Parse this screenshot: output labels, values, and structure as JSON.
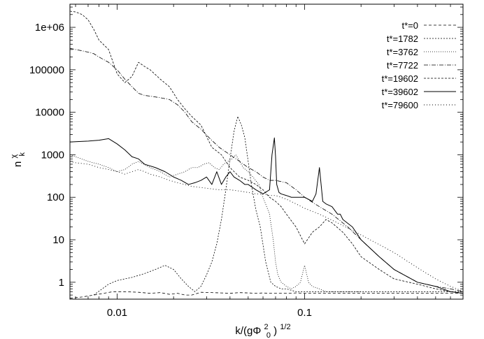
{
  "chart_data": {
    "type": "line",
    "title": "",
    "xlabel": "k/(gΦ₀²)^{1/2}",
    "xlabel_parts": {
      "base": "k/(gΦ",
      "sub": "0",
      "sup": "2",
      "close": ")",
      "exp": "1/2"
    },
    "ylabel": "n_k^χ",
    "ylabel_parts": {
      "base": "n",
      "sub": "k",
      "sup": "χ"
    },
    "x_scale": "log",
    "y_scale": "log",
    "xlim": [
      0.0056,
      0.7
    ],
    "ylim": [
      0.4,
      3500000
    ],
    "x_ticks": [
      {
        "value": 0.01,
        "label": "0.01"
      },
      {
        "value": 0.1,
        "label": "0.1"
      }
    ],
    "y_ticks": [
      {
        "value": 1,
        "label": "1"
      },
      {
        "value": 10,
        "label": "10"
      },
      {
        "value": 100,
        "label": "100"
      },
      {
        "value": 1000,
        "label": "1000"
      },
      {
        "value": 10000,
        "label": "10000"
      },
      {
        "value": 100000,
        "label": "100000"
      },
      {
        "value": 1000000,
        "label": "1e+06"
      }
    ],
    "legend_position": "top-right",
    "series": [
      {
        "name": "t*=0",
        "dash": "4,3",
        "width": 0.8,
        "x": [
          0.0056,
          0.0065,
          0.0075,
          0.0085,
          0.0095,
          0.011,
          0.013,
          0.015,
          0.017,
          0.019,
          0.021,
          0.023,
          0.025,
          0.028,
          0.032,
          0.036,
          0.04,
          0.045,
          0.05,
          0.055,
          0.06,
          0.065,
          0.07,
          0.08,
          0.09,
          0.1,
          0.12,
          0.15,
          0.2,
          0.3,
          0.4,
          0.5,
          0.6,
          0.7
        ],
        "y": [
          0.42,
          0.45,
          0.5,
          0.55,
          0.6,
          0.6,
          0.58,
          0.55,
          0.57,
          0.52,
          0.55,
          0.5,
          0.5,
          0.58,
          0.57,
          0.56,
          0.55,
          0.57,
          0.56,
          0.55,
          0.56,
          0.55,
          0.55,
          0.55,
          0.56,
          0.55,
          0.55,
          0.55,
          0.55,
          0.55,
          0.55,
          0.55,
          0.55,
          0.55
        ]
      },
      {
        "name": "t*=1782",
        "dash": "2,2",
        "width": 0.8,
        "x": [
          0.0075,
          0.009,
          0.01,
          0.012,
          0.014,
          0.016,
          0.018,
          0.02,
          0.022,
          0.024,
          0.026,
          0.028,
          0.03,
          0.032,
          0.034,
          0.036,
          0.038,
          0.04,
          0.042,
          0.044,
          0.046,
          0.048,
          0.05,
          0.052,
          0.055,
          0.058,
          0.062,
          0.066,
          0.07,
          0.075,
          0.08,
          0.09,
          0.1,
          0.12,
          0.15,
          0.2,
          0.3,
          0.5,
          0.7
        ],
        "y": [
          0.5,
          0.9,
          1.1,
          1.3,
          1.6,
          2.0,
          2.5,
          2.0,
          1.2,
          0.8,
          0.6,
          0.8,
          1.5,
          3,
          8,
          30,
          150,
          800,
          3500,
          8000,
          5000,
          2500,
          700,
          200,
          50,
          20,
          3,
          1,
          0.8,
          0.7,
          0.7,
          0.6,
          0.6,
          0.6,
          0.6,
          0.6,
          0.6,
          0.6,
          0.6
        ]
      },
      {
        "name": "t*=3762",
        "dash": "1,2",
        "width": 0.8,
        "x": [
          0.0056,
          0.007,
          0.008,
          0.009,
          0.01,
          0.011,
          0.012,
          0.013,
          0.015,
          0.017,
          0.019,
          0.021,
          0.023,
          0.025,
          0.027,
          0.029,
          0.031,
          0.033,
          0.035,
          0.037,
          0.039,
          0.041,
          0.043,
          0.045,
          0.047,
          0.05,
          0.053,
          0.057,
          0.06,
          0.065,
          0.068,
          0.07,
          0.072,
          0.075,
          0.08,
          0.085,
          0.09,
          0.095,
          0.1,
          0.105,
          0.11,
          0.12,
          0.13,
          0.15,
          0.17,
          0.2
        ],
        "y": [
          1000,
          700,
          600,
          500,
          400,
          450,
          600,
          700,
          500,
          400,
          300,
          350,
          400,
          500,
          500,
          600,
          650,
          500,
          450,
          600,
          700,
          800,
          1000,
          700,
          500,
          400,
          300,
          200,
          100,
          40,
          10,
          3,
          1.5,
          1,
          0.8,
          0.7,
          0.8,
          1.0,
          2.5,
          1.0,
          0.8,
          0.7,
          0.6,
          0.6,
          0.6,
          0.6
        ]
      },
      {
        "name": "t*=7722",
        "dash": "6,2,1,2",
        "width": 0.8,
        "x": [
          0.0056,
          0.006,
          0.0065,
          0.007,
          0.0075,
          0.008,
          0.009,
          0.01,
          0.011,
          0.012,
          0.013,
          0.014,
          0.015,
          0.017,
          0.019,
          0.021,
          0.023,
          0.025,
          0.028,
          0.031,
          0.035,
          0.04,
          0.045,
          0.05,
          0.055,
          0.06,
          0.065,
          0.07,
          0.08,
          0.09,
          0.1,
          0.12,
          0.14,
          0.17,
          0.2,
          0.25,
          0.3,
          0.4,
          0.5,
          0.6,
          0.7
        ],
        "y": [
          320000,
          300000,
          280000,
          260000,
          240000,
          200000,
          150000,
          100000,
          60000,
          40000,
          28000,
          25000,
          24000,
          22000,
          20000,
          15000,
          10000,
          6000,
          4000,
          2500,
          1500,
          1000,
          700,
          500,
          400,
          300,
          250,
          250,
          220,
          150,
          100,
          60,
          40,
          20,
          10,
          4,
          2,
          1,
          0.8,
          0.7,
          0.6
        ]
      },
      {
        "name": "t*=19602",
        "dash": "3,2",
        "width": 0.8,
        "x": [
          0.0056,
          0.006,
          0.0065,
          0.007,
          0.0075,
          0.008,
          0.009,
          0.01,
          0.011,
          0.012,
          0.013,
          0.014,
          0.015,
          0.017,
          0.019,
          0.021,
          0.023,
          0.025,
          0.028,
          0.032,
          0.036,
          0.04,
          0.045,
          0.05,
          0.055,
          0.06,
          0.065,
          0.07,
          0.075,
          0.08,
          0.09,
          0.1,
          0.11,
          0.12,
          0.13,
          0.14,
          0.16,
          0.18,
          0.2,
          0.25,
          0.3,
          0.4,
          0.5,
          0.6,
          0.7
        ],
        "y": [
          2400000,
          2300000,
          2000000,
          1500000,
          900000,
          500000,
          300000,
          80000,
          50000,
          70000,
          150000,
          120000,
          100000,
          60000,
          40000,
          20000,
          12000,
          8000,
          5000,
          1500,
          1000,
          500,
          300,
          250,
          200,
          150,
          100,
          80,
          60,
          40,
          20,
          8,
          15,
          20,
          30,
          25,
          15,
          8,
          4,
          2,
          1.2,
          0.9,
          0.7,
          0.6,
          0.55
        ]
      },
      {
        "name": "t*=39602",
        "dash": "none",
        "width": 1.0,
        "x": [
          0.0056,
          0.007,
          0.008,
          0.009,
          0.01,
          0.011,
          0.012,
          0.013,
          0.014,
          0.016,
          0.018,
          0.02,
          0.022,
          0.024,
          0.026,
          0.028,
          0.03,
          0.032,
          0.034,
          0.036,
          0.038,
          0.04,
          0.042,
          0.045,
          0.048,
          0.05,
          0.055,
          0.06,
          0.065,
          0.067,
          0.069,
          0.07,
          0.071,
          0.073,
          0.075,
          0.08,
          0.085,
          0.09,
          0.1,
          0.11,
          0.115,
          0.12,
          0.125,
          0.13,
          0.14,
          0.15,
          0.155,
          0.16,
          0.18,
          0.2,
          0.25,
          0.3,
          0.4,
          0.5,
          0.6,
          0.7
        ],
        "y": [
          2000,
          2100,
          2200,
          2400,
          1800,
          1300,
          900,
          800,
          600,
          500,
          400,
          300,
          250,
          200,
          220,
          250,
          300,
          200,
          400,
          200,
          300,
          400,
          300,
          250,
          200,
          200,
          150,
          120,
          150,
          1000,
          2500,
          900,
          200,
          130,
          120,
          110,
          100,
          100,
          100,
          80,
          120,
          500,
          80,
          70,
          60,
          40,
          40,
          30,
          20,
          10,
          4,
          2,
          1,
          0.8,
          0.6,
          0.55
        ]
      },
      {
        "name": "t*=79600",
        "dash": "1,3",
        "width": 0.9,
        "x": [
          0.0056,
          0.006,
          0.007,
          0.008,
          0.009,
          0.01,
          0.011,
          0.012,
          0.013,
          0.014,
          0.015,
          0.017,
          0.019,
          0.021,
          0.023,
          0.025,
          0.028,
          0.031,
          0.035,
          0.04,
          0.045,
          0.05,
          0.055,
          0.06,
          0.065,
          0.07,
          0.075,
          0.08,
          0.09,
          0.1,
          0.12,
          0.15,
          0.2,
          0.3,
          0.4,
          0.5,
          0.6,
          0.65,
          0.7
        ],
        "y": [
          700,
          650,
          600,
          500,
          450,
          400,
          350,
          400,
          450,
          400,
          350,
          300,
          250,
          220,
          200,
          180,
          170,
          160,
          150,
          150,
          140,
          130,
          120,
          120,
          110,
          110,
          100,
          90,
          70,
          55,
          40,
          25,
          13,
          5,
          2.2,
          1.2,
          0.8,
          0.7,
          0.6
        ]
      }
    ]
  }
}
